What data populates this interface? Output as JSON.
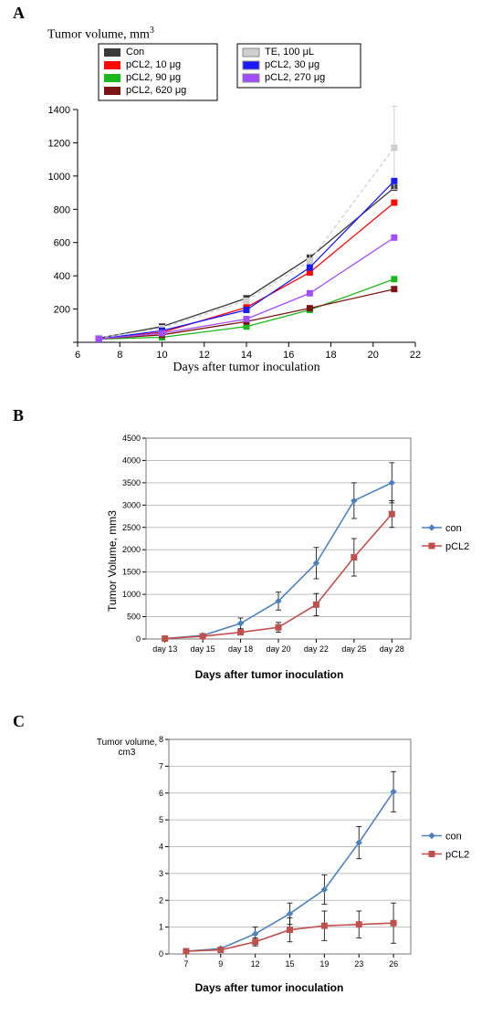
{
  "labels": {
    "A": "A",
    "B": "B",
    "C": "C"
  },
  "panelA": {
    "type": "line",
    "ylabel": "Tumor volume, mm",
    "ylabel_sup": "3",
    "xlabel": "Days after tumor inoculation",
    "x": [
      7,
      10,
      14,
      17,
      21
    ],
    "xlim": [
      6,
      22
    ],
    "xtick_step": 2,
    "ylim": [
      0,
      1400
    ],
    "ytick_step": 200,
    "background": "#ffffff",
    "axis_color": "#000000",
    "tick_fontsize": 11,
    "axis_fontsize": 14,
    "marker": "square",
    "marker_size": 6,
    "line_width": 1.3,
    "series": [
      {
        "name": "Con",
        "color": "#3a3a3a",
        "dash": "",
        "y": [
          25,
          95,
          265,
          510,
          930
        ]
      },
      {
        "name": "pCL2, 10 μg",
        "color": "#ff0808",
        "dash": "",
        "y": [
          20,
          60,
          210,
          420,
          840
        ]
      },
      {
        "name": "pCL2, 90 μg",
        "color": "#1bb81b",
        "dash": "",
        "y": [
          20,
          30,
          95,
          195,
          380
        ]
      },
      {
        "name": "pCL2, 620 μg",
        "color": "#7b1414",
        "dash": "",
        "y": [
          20,
          45,
          125,
          205,
          320
        ]
      },
      {
        "name": "TE, 100 μL",
        "color": "#cfcfcf",
        "dash": "4,3",
        "y": [
          25,
          85,
          250,
          490,
          1170
        ],
        "err": [
          0,
          0,
          0,
          40,
          250
        ]
      },
      {
        "name": "pCL2, 30 μg",
        "color": "#1a1aff",
        "dash": "",
        "y": [
          20,
          70,
          195,
          450,
          970
        ]
      },
      {
        "name": "pCL2, 270 μg",
        "color": "#a24dff",
        "dash": "",
        "y": [
          20,
          55,
          140,
          295,
          630
        ]
      }
    ],
    "legend_left": [
      "Con",
      "pCL2, 10 μg",
      "pCL2, 90 μg",
      "pCL2, 620 μg"
    ],
    "legend_left_colors": [
      "#3a3a3a",
      "#ff0808",
      "#1bb81b",
      "#7b1414"
    ],
    "legend_right": [
      "TE, 100 μL",
      "pCL2, 30 μg",
      "pCL2, 270 μg"
    ],
    "legend_right_colors": [
      "#cfcfcf",
      "#1a1aff",
      "#a24dff"
    ]
  },
  "panelB": {
    "type": "line",
    "ylabel": "Tumor Volume, mm3",
    "xlabel": "Days after tumor inoculation",
    "xcats": [
      "day 13",
      "day 15",
      "day 18",
      "day 20",
      "day 22",
      "day 25",
      "day 28"
    ],
    "ylim": [
      0,
      4500
    ],
    "ytick_step": 500,
    "grid_color": "#bfbfbf",
    "background": "#ffffff",
    "tick_fontsize": 9,
    "marker_size": 6,
    "line_width": 1.6,
    "series": [
      {
        "name": "con",
        "color": "#4f81bd",
        "marker": "diamond",
        "y": [
          10,
          80,
          350,
          850,
          1700,
          3100,
          3500
        ],
        "err": [
          0,
          40,
          120,
          200,
          350,
          400,
          450
        ]
      },
      {
        "name": "pCL2",
        "color": "#c0504d",
        "marker": "square",
        "y": [
          10,
          60,
          150,
          260,
          770,
          1830,
          2800
        ],
        "err": [
          0,
          30,
          60,
          110,
          250,
          420,
          300
        ]
      }
    ]
  },
  "panelC": {
    "type": "line",
    "ylabel_line1": "Tumor volume,",
    "ylabel_line2": "cm3",
    "xlabel": "Days after tumor inoculation",
    "xcats": [
      "7",
      "9",
      "12",
      "15",
      "19",
      "23",
      "26"
    ],
    "ylim": [
      0,
      8
    ],
    "ytick_step": 1,
    "grid_color": "#bfbfbf",
    "background": "#ffffff",
    "tick_fontsize": 9,
    "marker_size": 6,
    "line_width": 1.6,
    "series": [
      {
        "name": "con",
        "color": "#4f81bd",
        "marker": "diamond",
        "y": [
          0.1,
          0.2,
          0.75,
          1.5,
          2.4,
          4.15,
          6.05
        ],
        "err": [
          0,
          0.05,
          0.25,
          0.4,
          0.55,
          0.6,
          0.75
        ]
      },
      {
        "name": "pCL2",
        "color": "#c0504d",
        "marker": "square",
        "y": [
          0.1,
          0.15,
          0.45,
          0.9,
          1.05,
          1.1,
          1.15
        ],
        "err": [
          0,
          0.05,
          0.15,
          0.45,
          0.55,
          0.5,
          0.75
        ]
      }
    ]
  }
}
